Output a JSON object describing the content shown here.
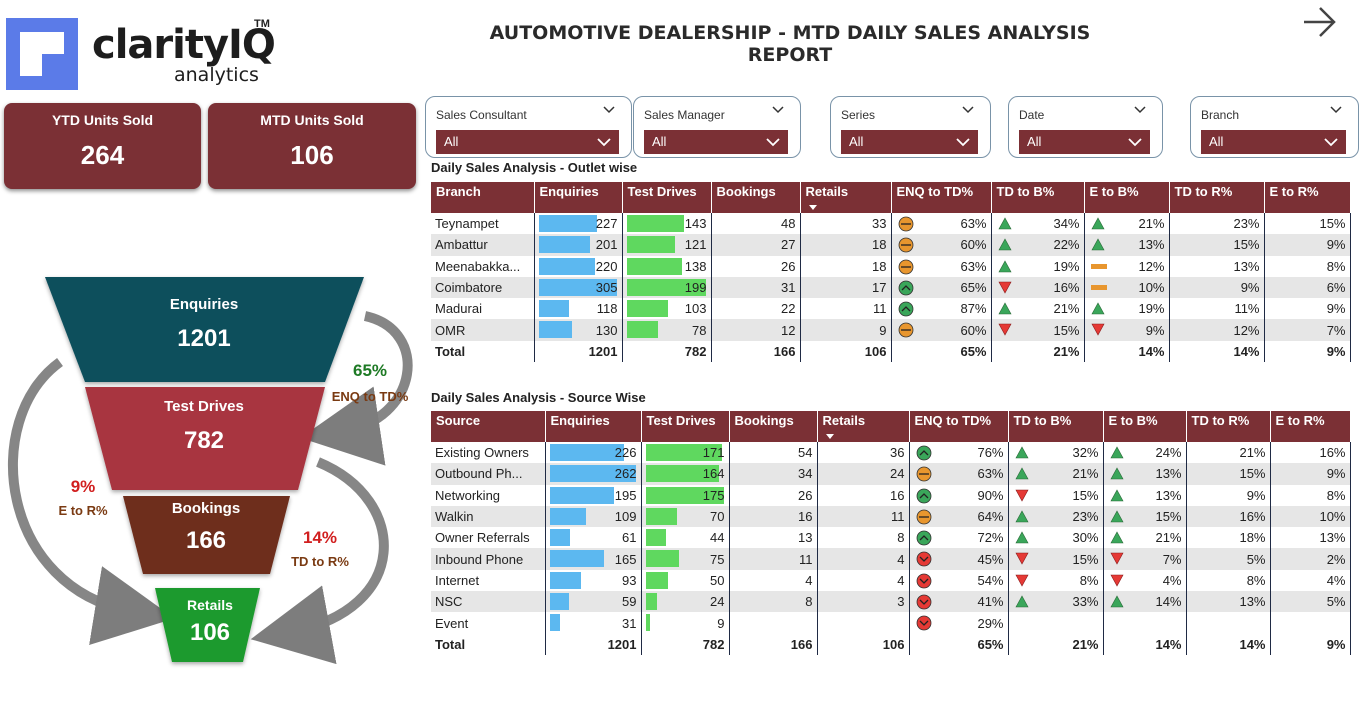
{
  "brand": {
    "name": "clarityIQ",
    "tm": "TM",
    "sub": "analytics"
  },
  "report_title": "AUTOMOTIVE DEALERSHIP - MTD DAILY SALES ANALYSIS REPORT",
  "kpis": [
    {
      "label": "YTD Units Sold",
      "value": "264"
    },
    {
      "label": "MTD Units Sold",
      "value": "106"
    }
  ],
  "slicers": [
    {
      "label": "Sales Consultant",
      "value": "All"
    },
    {
      "label": "Sales Manager",
      "value": "All"
    },
    {
      "label": "Series",
      "value": "All"
    },
    {
      "label": "Date",
      "value": "All"
    },
    {
      "label": "Branch",
      "value": "All"
    }
  ],
  "funnel": {
    "stages": [
      {
        "label": "Enquiries",
        "value": "1201",
        "color": "#0c4f5c"
      },
      {
        "label": "Test Drives",
        "value": "782",
        "color": "#a8343f"
      },
      {
        "label": "Bookings",
        "value": "166",
        "color": "#6e2f1f"
      },
      {
        "label": "Retails",
        "value": "106",
        "color": "#1e9a2e"
      }
    ],
    "ratios": {
      "enq_td": {
        "value": "65%",
        "label": "ENQ to TD%"
      },
      "e_r": {
        "value": "9%",
        "label": "E to R%"
      },
      "td_r": {
        "value": "14%",
        "label": "TD to R%"
      }
    }
  },
  "outlet": {
    "title": "Daily Sales Analysis - Outlet wise",
    "headers": [
      "Branch",
      "Enquiries",
      "Test Drives",
      "Bookings",
      "Retails",
      "ENQ to TD%",
      "TD to B%",
      "E to B%",
      "TD to R%",
      "E to R%"
    ],
    "rows": [
      {
        "name": "Teynampet",
        "enq": 227,
        "td": 143,
        "book": "48",
        "ret": "33",
        "enq_td": "63%",
        "enq_td_i": "neutral",
        "td_b": "34%",
        "td_b_i": "up",
        "e_b": "21%",
        "e_b_i": "up",
        "td_r": "23%",
        "e_r": "15%"
      },
      {
        "name": "Ambattur",
        "enq": 201,
        "td": 121,
        "book": "27",
        "ret": "18",
        "enq_td": "60%",
        "enq_td_i": "neutral",
        "td_b": "22%",
        "td_b_i": "up",
        "e_b": "13%",
        "e_b_i": "up",
        "td_r": "15%",
        "e_r": "9%"
      },
      {
        "name": "Meenabakka...",
        "enq": 220,
        "td": 138,
        "book": "26",
        "ret": "18",
        "enq_td": "63%",
        "enq_td_i": "neutral",
        "td_b": "19%",
        "td_b_i": "up",
        "e_b": "12%",
        "e_b_i": "flat",
        "td_r": "13%",
        "e_r": "8%"
      },
      {
        "name": "Coimbatore",
        "enq": 305,
        "td": 199,
        "book": "31",
        "ret": "17",
        "enq_td": "65%",
        "enq_td_i": "good",
        "td_b": "16%",
        "td_b_i": "down",
        "e_b": "10%",
        "e_b_i": "flat",
        "td_r": "9%",
        "e_r": "6%"
      },
      {
        "name": "Madurai",
        "enq": 118,
        "td": 103,
        "book": "22",
        "ret": "11",
        "enq_td": "87%",
        "enq_td_i": "good",
        "td_b": "21%",
        "td_b_i": "up",
        "e_b": "19%",
        "e_b_i": "up",
        "td_r": "11%",
        "e_r": "9%"
      },
      {
        "name": "OMR",
        "enq": 130,
        "td": 78,
        "book": "12",
        "ret": "9",
        "enq_td": "60%",
        "enq_td_i": "neutral",
        "td_b": "15%",
        "td_b_i": "down",
        "e_b": "9%",
        "e_b_i": "down",
        "td_r": "12%",
        "e_r": "7%"
      }
    ],
    "total": {
      "name": "Total",
      "enq": "1201",
      "td": "782",
      "book": "166",
      "ret": "106",
      "enq_td": "65%",
      "td_b": "21%",
      "e_b": "14%",
      "td_r": "14%",
      "e_r": "9%"
    }
  },
  "source": {
    "title": "Daily Sales Analysis - Source Wise",
    "headers": [
      "Source",
      "Enquiries",
      "Test Drives",
      "Bookings",
      "Retails",
      "ENQ to TD%",
      "TD to B%",
      "E to B%",
      "TD to R%",
      "E to R%"
    ],
    "rows": [
      {
        "name": "Existing Owners",
        "enq": 226,
        "td": 171,
        "book": "54",
        "ret": "36",
        "enq_td": "76%",
        "enq_td_i": "good",
        "td_b": "32%",
        "td_b_i": "up",
        "e_b": "24%",
        "e_b_i": "up",
        "td_r": "21%",
        "e_r": "16%"
      },
      {
        "name": "Outbound Ph...",
        "enq": 262,
        "td": 164,
        "book": "34",
        "ret": "24",
        "enq_td": "63%",
        "enq_td_i": "neutral",
        "td_b": "21%",
        "td_b_i": "up",
        "e_b": "13%",
        "e_b_i": "up",
        "td_r": "15%",
        "e_r": "9%"
      },
      {
        "name": "Networking",
        "enq": 195,
        "td": 175,
        "book": "26",
        "ret": "16",
        "enq_td": "90%",
        "enq_td_i": "good",
        "td_b": "15%",
        "td_b_i": "down",
        "e_b": "13%",
        "e_b_i": "up",
        "td_r": "9%",
        "e_r": "8%"
      },
      {
        "name": "Walkin",
        "enq": 109,
        "td": 70,
        "book": "16",
        "ret": "11",
        "enq_td": "64%",
        "enq_td_i": "neutral",
        "td_b": "23%",
        "td_b_i": "up",
        "e_b": "15%",
        "e_b_i": "up",
        "td_r": "16%",
        "e_r": "10%"
      },
      {
        "name": "Owner Referrals",
        "enq": 61,
        "td": 44,
        "book": "13",
        "ret": "8",
        "enq_td": "72%",
        "enq_td_i": "good",
        "td_b": "30%",
        "td_b_i": "up",
        "e_b": "21%",
        "e_b_i": "up",
        "td_r": "18%",
        "e_r": "13%"
      },
      {
        "name": "Inbound Phone",
        "enq": 165,
        "td": 75,
        "book": "11",
        "ret": "4",
        "enq_td": "45%",
        "enq_td_i": "bad",
        "td_b": "15%",
        "td_b_i": "down",
        "e_b": "7%",
        "e_b_i": "down",
        "td_r": "5%",
        "e_r": "2%"
      },
      {
        "name": "Internet",
        "enq": 93,
        "td": 50,
        "book": "4",
        "ret": "4",
        "enq_td": "54%",
        "enq_td_i": "bad",
        "td_b": "8%",
        "td_b_i": "down",
        "e_b": "4%",
        "e_b_i": "down",
        "td_r": "8%",
        "e_r": "4%"
      },
      {
        "name": "NSC",
        "enq": 59,
        "td": 24,
        "book": "8",
        "ret": "3",
        "enq_td": "41%",
        "enq_td_i": "bad",
        "td_b": "33%",
        "td_b_i": "up",
        "e_b": "14%",
        "e_b_i": "up",
        "td_r": "13%",
        "e_r": "5%"
      },
      {
        "name": "Event",
        "enq": 31,
        "td": 9,
        "book": "",
        "ret": "",
        "enq_td": "29%",
        "enq_td_i": "bad",
        "td_b": "",
        "td_b_i": "",
        "e_b": "",
        "e_b_i": "",
        "td_r": "",
        "e_r": ""
      }
    ],
    "total": {
      "name": "Total",
      "enq": "1201",
      "td": "782",
      "book": "166",
      "ret": "106",
      "enq_td": "65%",
      "td_b": "21%",
      "e_b": "14%",
      "td_r": "14%",
      "e_r": "9%"
    }
  },
  "colors": {
    "maroon": "#7b3035",
    "enq_bar": "#5cb8f0",
    "td_bar": "#5fd85f",
    "ind_good": "#3aa65a",
    "ind_neutral": "#e8962e",
    "ind_bad": "#e53935",
    "arrow_up": "#3aa65a",
    "arrow_down": "#e53935",
    "flat": "#e8962e"
  }
}
